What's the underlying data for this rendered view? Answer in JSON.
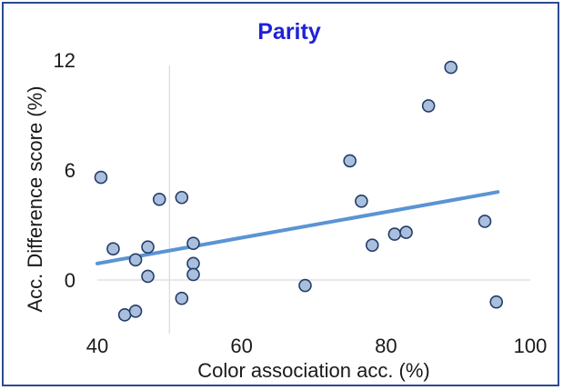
{
  "chart_data": {
    "type": "scatter",
    "title": "Parity",
    "xlabel": "Color association acc. (%)",
    "ylabel": "Acc. Difference score (%)",
    "xlim": [
      40,
      100
    ],
    "ylim": [
      -3,
      12
    ],
    "x_ticks": [
      "40",
      "60",
      "80",
      "100"
    ],
    "y_ticks": [
      "0",
      "6",
      "12"
    ],
    "x_tick_values": [
      40,
      60,
      80,
      100
    ],
    "y_tick_values": [
      0,
      6,
      12
    ],
    "grid": "vertical line at x=50",
    "legend": "none",
    "colors": {
      "title": "#1f22d6",
      "marker_fill": "#a9bfdb",
      "marker_edge": "#233c6a",
      "trendline": "#5a94d3",
      "frame": "#2c4a8f",
      "gridline": "#d9d9d9"
    },
    "series": [
      {
        "points": [
          {
            "x": 40.5,
            "y": 5.6
          },
          {
            "x": 42.2,
            "y": 1.7
          },
          {
            "x": 43.8,
            "y": -1.9
          },
          {
            "x": 45.3,
            "y": 1.1
          },
          {
            "x": 45.3,
            "y": -1.7
          },
          {
            "x": 47.0,
            "y": 1.8
          },
          {
            "x": 47.0,
            "y": 0.2
          },
          {
            "x": 48.6,
            "y": 4.4
          },
          {
            "x": 51.7,
            "y": 4.5
          },
          {
            "x": 51.7,
            "y": -1.0
          },
          {
            "x": 53.3,
            "y": 2.0
          },
          {
            "x": 53.3,
            "y": 0.9
          },
          {
            "x": 53.3,
            "y": 0.3
          },
          {
            "x": 68.8,
            "y": -0.3
          },
          {
            "x": 75.0,
            "y": 6.5
          },
          {
            "x": 76.6,
            "y": 4.3
          },
          {
            "x": 78.1,
            "y": 1.9
          },
          {
            "x": 81.2,
            "y": 2.5
          },
          {
            "x": 82.8,
            "y": 2.6
          },
          {
            "x": 85.9,
            "y": 9.5
          },
          {
            "x": 89.0,
            "y": 11.6
          },
          {
            "x": 93.7,
            "y": 3.2
          },
          {
            "x": 95.3,
            "y": -1.2
          }
        ]
      }
    ],
    "trendline": {
      "x": [
        40,
        95.5
      ],
      "y": [
        0.9,
        4.8
      ]
    }
  }
}
